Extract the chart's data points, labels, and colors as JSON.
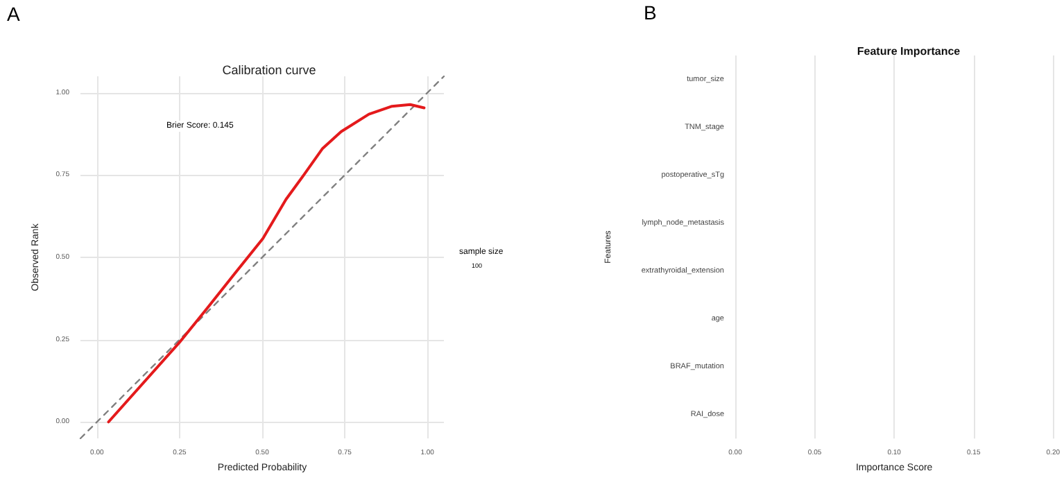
{
  "chart_data": [
    {
      "type": "line",
      "title": "Calibration curve",
      "xlabel": "Predicted Probability",
      "ylabel": "Observed Rank",
      "annotations": [
        "A",
        "Brier Score: 0.145",
        "sample size",
        "100"
      ],
      "series": [
        {
          "color": "#e41a1c",
          "line_style": "solid",
          "x": [
            0.035,
            0.25,
            0.335,
            0.418,
            0.502,
            0.572,
            0.628,
            0.683,
            0.739,
            0.823,
            0.893,
            0.948,
            0.99
          ],
          "values": [
            0,
            0.242,
            0.347,
            0.452,
            0.557,
            0.676,
            0.753,
            0.831,
            0.882,
            0.935,
            0.959,
            0.964,
            0.954
          ]
        },
        {
          "color": "#808080",
          "line_style": "dashed",
          "x": [
            -0.05,
            1.05
          ],
          "values": [
            -0.05,
            1.05
          ]
        }
      ],
      "xlim": [
        -0.05,
        1.05
      ],
      "ylim": [
        -0.05,
        1.05
      ],
      "xticks": [
        {
          "value": 0,
          "label": "0.00"
        },
        {
          "value": 0.25,
          "label": "0.25"
        },
        {
          "value": 0.5,
          "label": "0.50"
        },
        {
          "value": 0.75,
          "label": "0.75"
        },
        {
          "value": 1,
          "label": "1.00"
        }
      ],
      "yticks": [
        {
          "value": 0,
          "label": "0.00"
        },
        {
          "value": 0.25,
          "label": "0.25"
        },
        {
          "value": 0.5,
          "label": "0.50"
        },
        {
          "value": 0.75,
          "label": "0.75"
        },
        {
          "value": 1,
          "label": "1.00"
        }
      ],
      "grid": true,
      "marker": "none"
    },
    {
      "type": "bar",
      "orientation": "horizontal",
      "title": "Feature Importance",
      "xlabel": "Importance Score",
      "ylabel": "Features",
      "annotations": [
        "B"
      ],
      "categories": [
        "tumor_size",
        "TNM_stage",
        "postoperative_sTg",
        "lymph_node_metastasis",
        "extrathyroidal_extension",
        "age",
        "BRAF_mutation",
        "RAI_dose"
      ],
      "values": [
        null,
        null,
        null,
        null,
        null,
        null,
        null,
        null
      ],
      "xlim": [
        0,
        0.2
      ],
      "xticks": [
        {
          "value": 0,
          "label": "0.00"
        },
        {
          "value": 0.05,
          "label": "0.05"
        },
        {
          "value": 0.1,
          "label": "0.10"
        },
        {
          "value": 0.15,
          "label": "0.15"
        },
        {
          "value": 0.2,
          "label": "0.20"
        }
      ],
      "grid": "x"
    }
  ]
}
